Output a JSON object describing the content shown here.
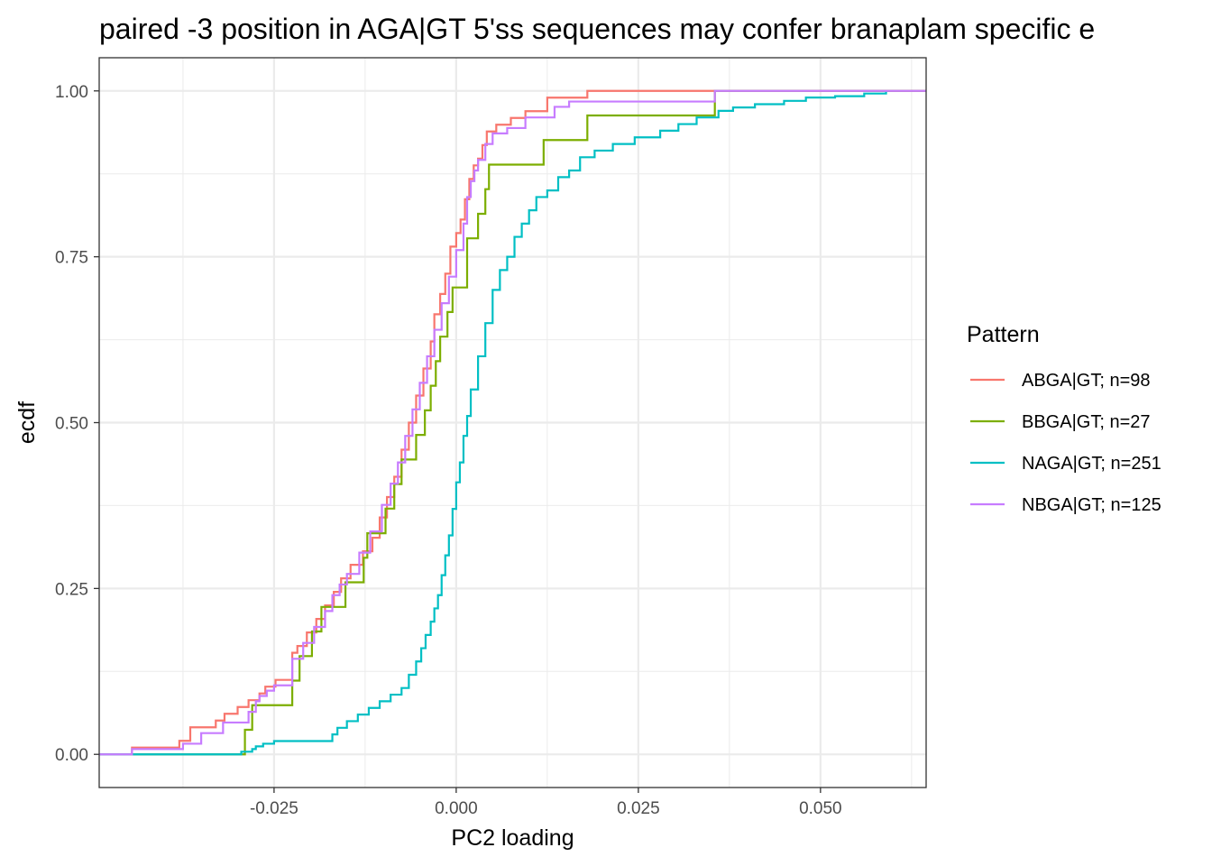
{
  "chart_data": {
    "type": "line",
    "subtype": "step-ecdf",
    "title": "paired -3 position in AGA|GT 5'ss sequences may confer branaplam specific e",
    "xlabel": "PC2 loading",
    "ylabel": "ecdf",
    "xlim": [
      -0.049,
      0.0645
    ],
    "ylim": [
      -0.05,
      1.05
    ],
    "x_ticks": [
      -0.025,
      0.0,
      0.025,
      0.05
    ],
    "x_tick_labels": [
      "-0.025",
      "0.000",
      "0.025",
      "0.050"
    ],
    "y_ticks": [
      0.0,
      0.25,
      0.5,
      0.75,
      1.0
    ],
    "y_tick_labels": [
      "0.00",
      "0.25",
      "0.50",
      "0.75",
      "1.00"
    ],
    "grid": true,
    "legend_title": "Pattern",
    "legend_position": "right",
    "series": [
      {
        "name": "ABGA|GT; n=98",
        "color": "#F8766D",
        "x": [
          -0.049,
          -0.0445,
          -0.038,
          -0.0365,
          -0.033,
          -0.0318,
          -0.03,
          -0.0285,
          -0.027,
          -0.0262,
          -0.0248,
          -0.0225,
          -0.0218,
          -0.0205,
          -0.0192,
          -0.018,
          -0.0168,
          -0.0158,
          -0.0145,
          -0.0128,
          -0.0115,
          -0.0105,
          -0.0095,
          -0.0085,
          -0.0075,
          -0.0065,
          -0.0055,
          -0.0045,
          -0.0035,
          -0.003,
          -0.0022,
          -0.0015,
          -0.0008,
          0.0,
          0.0006,
          0.0012,
          0.0018,
          0.0024,
          0.003,
          0.0036,
          0.0042,
          0.0055,
          0.0075,
          0.0095,
          0.0125,
          0.0145,
          0.018,
          0.0645
        ],
        "y": [
          0.0,
          0.0102,
          0.0204,
          0.0408,
          0.051,
          0.0612,
          0.0714,
          0.0816,
          0.0918,
          0.102,
          0.1122,
          0.1531,
          0.1633,
          0.1837,
          0.2041,
          0.2245,
          0.2449,
          0.2653,
          0.2857,
          0.3061,
          0.3265,
          0.3571,
          0.3878,
          0.4184,
          0.4592,
          0.5,
          0.5408,
          0.5816,
          0.6224,
          0.6633,
          0.6939,
          0.7245,
          0.7653,
          0.7857,
          0.8061,
          0.8367,
          0.8673,
          0.8878,
          0.898,
          0.9184,
          0.9388,
          0.949,
          0.9592,
          0.9694,
          0.9898,
          0.9898,
          1.0,
          1.0
        ]
      },
      {
        "name": "BBGA|GT; n=27",
        "color": "#7CAE00",
        "x": [
          -0.049,
          -0.029,
          -0.028,
          -0.0225,
          -0.0215,
          -0.0198,
          -0.0185,
          -0.0152,
          -0.0127,
          -0.0122,
          -0.0097,
          -0.0085,
          -0.0075,
          -0.0055,
          -0.0043,
          -0.0035,
          -0.0028,
          -0.0022,
          -0.0012,
          -0.0005,
          0.0015,
          0.003,
          0.004,
          0.0045,
          0.012,
          0.018,
          0.0355,
          0.0645
        ],
        "y": [
          0.0,
          0.037,
          0.0741,
          0.1111,
          0.1481,
          0.1852,
          0.2222,
          0.2593,
          0.2963,
          0.3333,
          0.3704,
          0.4074,
          0.4444,
          0.4815,
          0.5185,
          0.5556,
          0.5926,
          0.6296,
          0.6667,
          0.7037,
          0.7778,
          0.8148,
          0.8519,
          0.8889,
          0.9259,
          0.963,
          1.0,
          1.0
        ]
      },
      {
        "name": "NAGA|GT; n=251",
        "color": "#00BFC4",
        "x": [
          -0.049,
          -0.0365,
          -0.0295,
          -0.028,
          -0.0275,
          -0.0265,
          -0.025,
          -0.0183,
          -0.017,
          -0.0163,
          -0.015,
          -0.0135,
          -0.012,
          -0.0105,
          -0.009,
          -0.0075,
          -0.0065,
          -0.0055,
          -0.0048,
          -0.0042,
          -0.0035,
          -0.003,
          -0.0025,
          -0.002,
          -0.0015,
          -0.001,
          -0.0005,
          0.0,
          0.0005,
          0.001,
          0.0015,
          0.002,
          0.003,
          0.004,
          0.005,
          0.006,
          0.007,
          0.008,
          0.009,
          0.01,
          0.011,
          0.0125,
          0.014,
          0.0155,
          0.017,
          0.019,
          0.0215,
          0.0245,
          0.028,
          0.0305,
          0.033,
          0.036,
          0.038,
          0.041,
          0.045,
          0.048,
          0.052,
          0.056,
          0.059
        ],
        "y": [
          0.0,
          0.0,
          0.004,
          0.008,
          0.012,
          0.016,
          0.02,
          0.02,
          0.03,
          0.04,
          0.05,
          0.06,
          0.07,
          0.08,
          0.09,
          0.1,
          0.12,
          0.14,
          0.16,
          0.18,
          0.2,
          0.22,
          0.24,
          0.27,
          0.3,
          0.33,
          0.37,
          0.41,
          0.44,
          0.48,
          0.51,
          0.55,
          0.6,
          0.65,
          0.7,
          0.73,
          0.75,
          0.78,
          0.8,
          0.82,
          0.84,
          0.85,
          0.87,
          0.88,
          0.9,
          0.91,
          0.92,
          0.93,
          0.94,
          0.95,
          0.96,
          0.97,
          0.975,
          0.98,
          0.985,
          0.99,
          0.992,
          0.996,
          1.0
        ]
      },
      {
        "name": "NBGA|GT; n=125",
        "color": "#C77CFF",
        "x": [
          -0.049,
          -0.0445,
          -0.0375,
          -0.035,
          -0.032,
          -0.0285,
          -0.0275,
          -0.027,
          -0.026,
          -0.025,
          -0.0225,
          -0.021,
          -0.0195,
          -0.018,
          -0.017,
          -0.016,
          -0.015,
          -0.0133,
          -0.0118,
          -0.0102,
          -0.009,
          -0.008,
          -0.007,
          -0.006,
          -0.005,
          -0.004,
          -0.003,
          -0.002,
          -0.001,
          0.0,
          0.001,
          0.0015,
          0.002,
          0.0025,
          0.003,
          0.004,
          0.005,
          0.007,
          0.0095,
          0.0135,
          0.0155,
          0.0355,
          0.0645
        ],
        "y": [
          0.0,
          0.008,
          0.016,
          0.032,
          0.048,
          0.064,
          0.08,
          0.088,
          0.096,
          0.104,
          0.144,
          0.168,
          0.192,
          0.216,
          0.24,
          0.256,
          0.272,
          0.304,
          0.336,
          0.376,
          0.408,
          0.44,
          0.48,
          0.52,
          0.56,
          0.6,
          0.64,
          0.68,
          0.72,
          0.76,
          0.8,
          0.84,
          0.864,
          0.88,
          0.896,
          0.92,
          0.936,
          0.944,
          0.96,
          0.976,
          0.984,
          1.0,
          1.0
        ]
      }
    ]
  }
}
